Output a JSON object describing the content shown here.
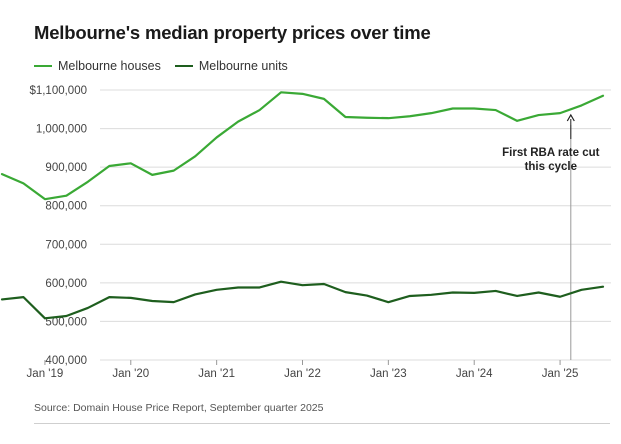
{
  "chart_data": {
    "type": "line",
    "title": "Melbourne's median property prices over time",
    "source": "Source: Domain House Price Report, September quarter 2025",
    "xlabel": "",
    "ylabel": "",
    "ylim": [
      400000,
      1100000
    ],
    "y_ticks": [
      {
        "value": 1100000,
        "label": "$1,100,000"
      },
      {
        "value": 1000000,
        "label": "1,000,000"
      },
      {
        "value": 900000,
        "label": "900,000"
      },
      {
        "value": 800000,
        "label": "800,000"
      },
      {
        "value": 700000,
        "label": "700,000"
      },
      {
        "value": 600000,
        "label": "600,000"
      },
      {
        "value": 500000,
        "label": "500,000"
      },
      {
        "value": 400000,
        "label": "400,000"
      }
    ],
    "x_range": [
      0,
      28
    ],
    "x_ticks": [
      {
        "value": 2,
        "label": "Jan '19"
      },
      {
        "value": 6,
        "label": "Jan '20"
      },
      {
        "value": 10,
        "label": "Jan '21"
      },
      {
        "value": 14,
        "label": "Jan '22"
      },
      {
        "value": 18,
        "label": "Jan '23"
      },
      {
        "value": 22,
        "label": "Jan '24"
      },
      {
        "value": 26,
        "label": "Jan '25"
      }
    ],
    "series": [
      {
        "name": "Melbourne houses",
        "color": "#3aa935",
        "values": [
          882000,
          858000,
          817000,
          826000,
          862000,
          903000,
          910000,
          880000,
          891000,
          928000,
          977000,
          1018000,
          1048000,
          1094000,
          1090000,
          1077000,
          1030000,
          1028000,
          1027000,
          1032000,
          1040000,
          1052000,
          1052000,
          1048000,
          1020000,
          1035000,
          1040000,
          1060000,
          1085000
        ]
      },
      {
        "name": "Melbourne units",
        "color": "#1e5e1e",
        "values": [
          557000,
          563000,
          508000,
          514000,
          535000,
          563000,
          561000,
          553000,
          550000,
          570000,
          582000,
          588000,
          588000,
          603000,
          594000,
          597000,
          576000,
          567000,
          550000,
          566000,
          569000,
          575000,
          574000,
          579000,
          566000,
          575000,
          564000,
          582000,
          590000
        ]
      }
    ],
    "annotations": [
      {
        "x": 26.5,
        "lines": [
          "First RBA rate cut",
          "this cycle"
        ]
      }
    ]
  }
}
